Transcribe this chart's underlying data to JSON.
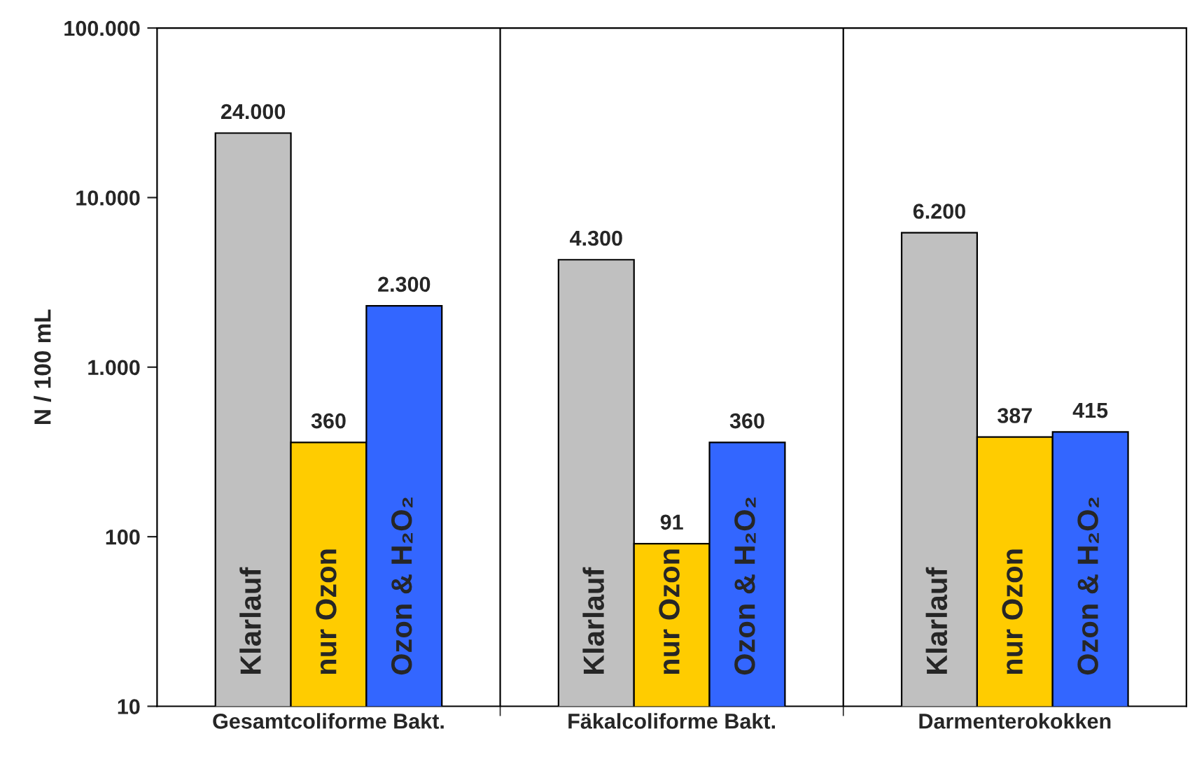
{
  "chart_data": {
    "type": "bar",
    "ylabel": "N / 100 mL",
    "log": "y",
    "categories": [
      "Gesamtcoliforme Bakt.",
      "Fäkalcoliforme Bakt.",
      "Darmenterokokken"
    ],
    "series": [
      {
        "name": "Klarlauf",
        "color": "#c0c0c0",
        "values": [
          24000,
          4300,
          6200
        ],
        "value_labels": [
          "24.000",
          "4.300",
          "6.200"
        ]
      },
      {
        "name": "nur Ozon",
        "color": "#ffcc00",
        "values": [
          360,
          91,
          387
        ],
        "value_labels": [
          "360",
          "91",
          "387"
        ]
      },
      {
        "name": "Ozon & H₂O₂",
        "color": "#3366ff",
        "values": [
          2300,
          360,
          415
        ],
        "value_labels": [
          "2.300",
          "360",
          "415"
        ]
      }
    ],
    "ylim": [
      10,
      100000
    ],
    "yticks": [
      10,
      100,
      {
        "value": 1000,
        "label": "1.000"
      },
      {
        "value": 10000,
        "label": "10.000"
      },
      {
        "value": 100000,
        "label": "100.000"
      }
    ],
    "grid": "x",
    "legend": false
  }
}
